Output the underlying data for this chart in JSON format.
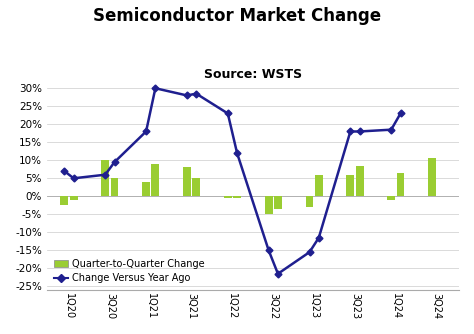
{
  "title": "Semiconductor Market Change",
  "subtitle": "Source: WSTS",
  "bar_groups": [
    {
      "tick": "1Q20",
      "bars": [
        -2.5,
        -1.0
      ]
    },
    {
      "tick": "3Q20",
      "bars": [
        10.0,
        5.0
      ]
    },
    {
      "tick": "1Q21",
      "bars": [
        4.0,
        9.0
      ]
    },
    {
      "tick": "3Q21",
      "bars": [
        8.0,
        5.0
      ]
    },
    {
      "tick": "1Q22",
      "bars": [
        -0.5,
        -0.5
      ]
    },
    {
      "tick": "3Q22",
      "bars": [
        -5.0,
        -3.5
      ]
    },
    {
      "tick": "1Q23",
      "bars": [
        -3.0,
        6.0
      ]
    },
    {
      "tick": "3Q23",
      "bars": [
        6.0,
        8.5
      ]
    },
    {
      "tick": "1Q24",
      "bars": [
        -1.0,
        6.5
      ]
    },
    {
      "tick": "3Q24",
      "bars": [
        10.5,
        null
      ]
    }
  ],
  "line_values": [
    7.0,
    5.0,
    6.0,
    9.5,
    18.0,
    30.0,
    28.0,
    28.5,
    23.0,
    12.0,
    -15.0,
    -21.5,
    -15.5,
    -11.5,
    18.0,
    18.0,
    18.5,
    23.0
  ],
  "bar_color": "#9ACD32",
  "line_color": "#1F1F8F",
  "background_color": "#ffffff",
  "ylim": [
    -26,
    32
  ],
  "yticks": [
    -25,
    -20,
    -15,
    -10,
    -5,
    0,
    5,
    10,
    15,
    20,
    25,
    30
  ],
  "title_fontsize": 12,
  "subtitle_fontsize": 9,
  "legend_bar_label": "Quarter-to-Quarter Change",
  "legend_line_label": "Change Versus Year Ago"
}
